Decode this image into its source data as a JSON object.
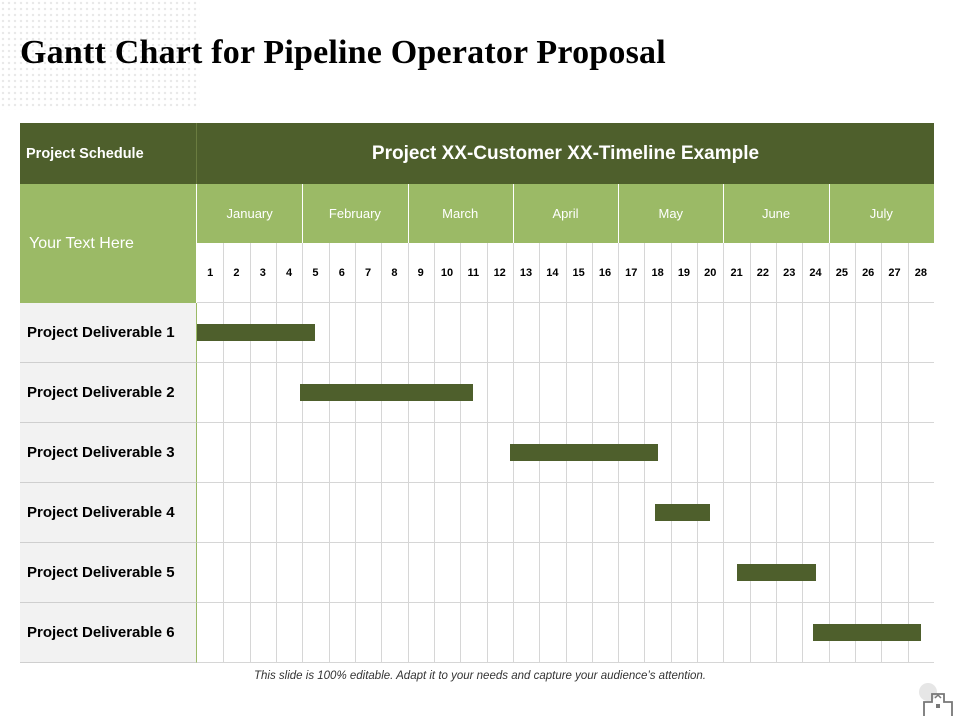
{
  "title": "Gantt Chart for Pipeline Operator Proposal",
  "footer": "This slide is 100% editable. Adapt it to your needs and capture your audience’s attention.",
  "colors": {
    "dark": "#4e5f2c",
    "light": "#9bba66",
    "label_bg": "#f2f2f2"
  },
  "chart_data": {
    "type": "gantt",
    "corner_label": "Project Schedule",
    "header_title": "Project XX-Customer XX-Timeline Example",
    "sub_label": "Your Text Here",
    "months": [
      "January",
      "February",
      "March",
      "April",
      "May",
      "June",
      "July"
    ],
    "periods": [
      1,
      2,
      3,
      4,
      5,
      6,
      7,
      8,
      9,
      10,
      11,
      12,
      13,
      14,
      15,
      16,
      17,
      18,
      19,
      20,
      21,
      22,
      23,
      24,
      25,
      26,
      27,
      28
    ],
    "tasks": [
      {
        "name": "Project Deliverable 1",
        "start": 1.0,
        "end": 5.5
      },
      {
        "name": "Project Deliverable 2",
        "start": 4.9,
        "end": 11.5
      },
      {
        "name": "Project Deliverable 3",
        "start": 12.9,
        "end": 18.5
      },
      {
        "name": "Project Deliverable 4",
        "start": 18.4,
        "end": 20.5
      },
      {
        "name": "Project Deliverable 5",
        "start": 21.5,
        "end": 24.5
      },
      {
        "name": "Project Deliverable 6",
        "start": 24.4,
        "end": 28.5
      }
    ]
  }
}
